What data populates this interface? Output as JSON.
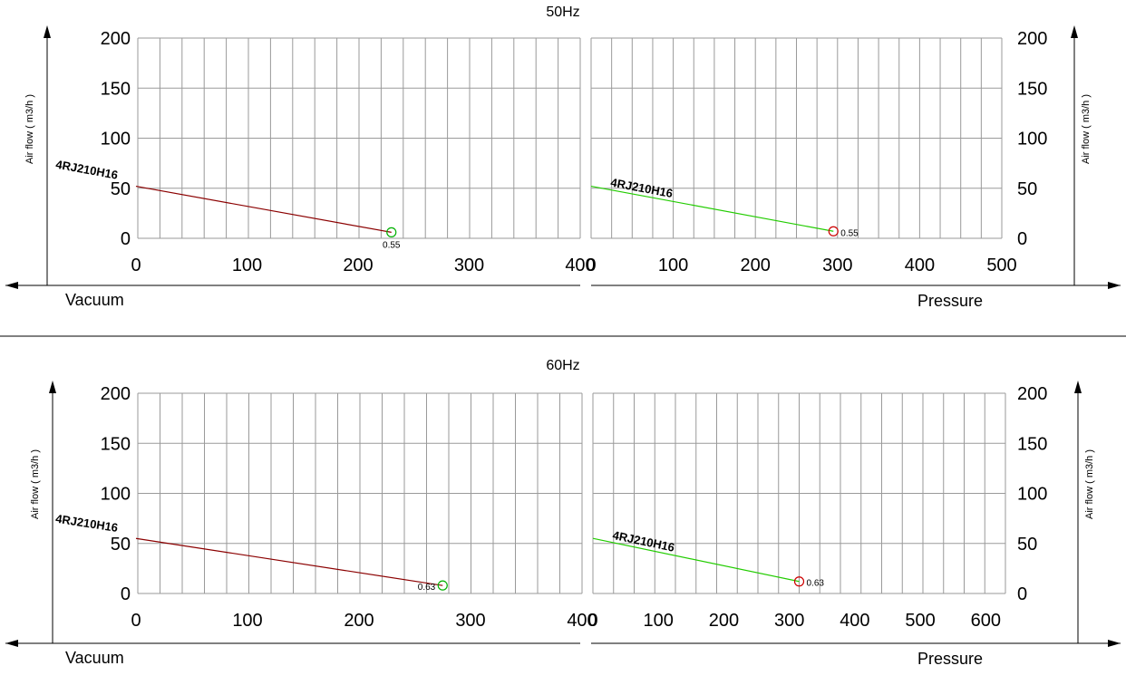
{
  "chart_data": [
    {
      "type": "line",
      "title": "50Hz",
      "ylabel_left": "Air flow ( m3/h )",
      "ylabel_right": "Air flow ( m3/h )",
      "ylim": [
        0,
        200
      ],
      "yticks": [
        0,
        50,
        100,
        150,
        200
      ],
      "grid": true,
      "vacuum": {
        "xlabel": "Vacuum",
        "xlim": [
          400,
          0
        ],
        "xticks": [
          400,
          300,
          200,
          100,
          0
        ],
        "series": [
          {
            "name": "4RJ210H16",
            "color": "#8b0000",
            "x": [
              0,
              230
            ],
            "y": [
              52,
              6
            ]
          }
        ],
        "marker": {
          "x": 230,
          "y": 6,
          "label": "0.55",
          "color": "#00b000"
        }
      },
      "pressure": {
        "xlabel": "Pressure",
        "xlim": [
          0,
          500
        ],
        "xticks": [
          0,
          100,
          200,
          300,
          400,
          500
        ],
        "series": [
          {
            "name": "4RJ210H16",
            "color": "#22cc00",
            "x": [
              0,
              295
            ],
            "y": [
              52,
              7
            ]
          }
        ],
        "marker": {
          "x": 295,
          "y": 7,
          "label": "0.55",
          "color": "#cc0000"
        }
      }
    },
    {
      "type": "line",
      "title": "60Hz",
      "ylabel_left": "Air flow ( m3/h )",
      "ylabel_right": "Air flow ( m3/h )",
      "ylim": [
        0,
        200
      ],
      "yticks": [
        0,
        50,
        100,
        150,
        200
      ],
      "grid": true,
      "vacuum": {
        "xlabel": "Vacuum",
        "xlim": [
          400,
          0
        ],
        "xticks": [
          400,
          300,
          200,
          100,
          0
        ],
        "series": [
          {
            "name": "4RJ210H16",
            "color": "#8b0000",
            "x": [
              0,
              275
            ],
            "y": [
              55,
              8
            ]
          }
        ],
        "marker": {
          "x": 275,
          "y": 8,
          "label": "0.63",
          "color": "#00b000"
        }
      },
      "pressure": {
        "xlabel": "Pressure",
        "xlim": [
          0,
          630
        ],
        "xticks": [
          0,
          100,
          200,
          300,
          400,
          500,
          600
        ],
        "series": [
          {
            "name": "4RJ210H16",
            "color": "#22cc00",
            "x": [
              0,
              315
            ],
            "y": [
              55,
              12
            ]
          }
        ],
        "marker": {
          "x": 315,
          "y": 12,
          "label": "0.63",
          "color": "#cc0000"
        }
      }
    }
  ]
}
